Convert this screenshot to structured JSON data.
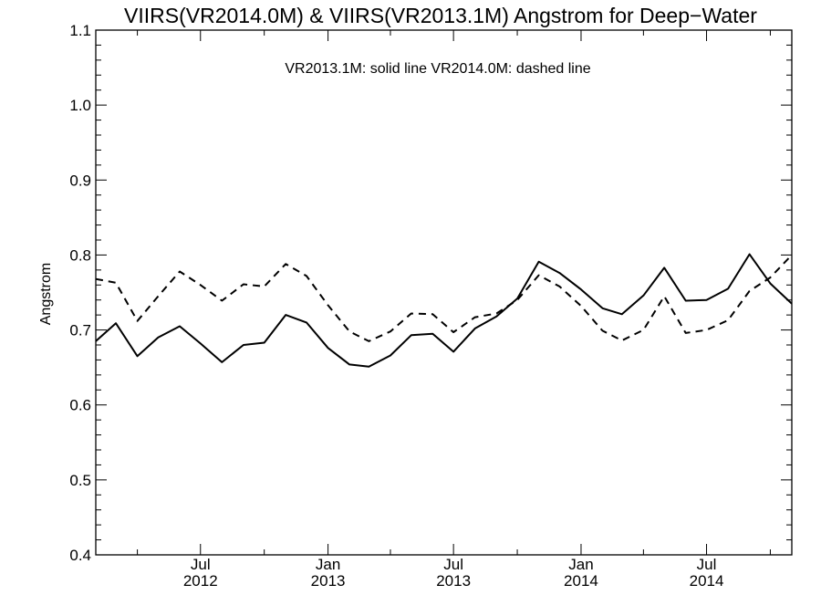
{
  "chart_data": {
    "type": "line",
    "title": "VIIRS(VR2014.0M) & VIIRS(VR2013.1M)  Angstrom for Deep−Water",
    "annotation": "VR2013.1M: solid line   VR2014.0M: dashed line",
    "ylabel": "Angstrom",
    "xlabel": "",
    "ylim": [
      0.4,
      1.1
    ],
    "xlim": [
      "2012-02-01",
      "2014-11-01"
    ],
    "y_ticks": [
      "0.4",
      "0.5",
      "0.6",
      "0.7",
      "0.8",
      "0.9",
      "1.0",
      "1.1"
    ],
    "x_ticks": [
      {
        "date": "2012-07-01",
        "label1": "Jul",
        "label2": "2012"
      },
      {
        "date": "2013-01-01",
        "label1": "Jan",
        "label2": "2013"
      },
      {
        "date": "2013-07-01",
        "label1": "Jul",
        "label2": "2013"
      },
      {
        "date": "2014-01-01",
        "label1": "Jan",
        "label2": "2014"
      },
      {
        "date": "2014-07-01",
        "label1": "Jul",
        "label2": "2014"
      }
    ],
    "x": [
      "2012-02",
      "2012-03",
      "2012-04",
      "2012-05",
      "2012-06",
      "2012-07",
      "2012-08",
      "2012-09",
      "2012-10",
      "2012-11",
      "2012-12",
      "2013-01",
      "2013-02",
      "2013-03",
      "2013-04",
      "2013-05",
      "2013-06",
      "2013-07",
      "2013-08",
      "2013-09",
      "2013-10",
      "2013-11",
      "2013-12",
      "2014-01",
      "2014-02",
      "2014-03",
      "2014-04",
      "2014-05",
      "2014-06",
      "2014-07",
      "2014-08",
      "2014-09",
      "2014-10",
      "2014-11"
    ],
    "series": [
      {
        "name": "VR2013.1M",
        "style": "solid",
        "values": [
          0.685,
          0.709,
          0.665,
          0.69,
          0.705,
          0.682,
          0.657,
          0.68,
          0.683,
          0.72,
          0.71,
          0.676,
          0.654,
          0.651,
          0.666,
          0.693,
          0.695,
          0.671,
          0.702,
          0.718,
          0.742,
          0.791,
          0.776,
          0.754,
          0.729,
          0.721,
          0.746,
          0.783,
          0.739,
          0.74,
          0.755,
          0.801,
          0.762,
          0.735
        ]
      },
      {
        "name": "VR2014.0M",
        "style": "dashed",
        "values": [
          0.768,
          0.763,
          0.712,
          0.745,
          0.778,
          0.76,
          0.739,
          0.761,
          0.758,
          0.788,
          0.772,
          0.733,
          0.698,
          0.685,
          0.698,
          0.722,
          0.721,
          0.697,
          0.717,
          0.722,
          0.74,
          0.773,
          0.758,
          0.732,
          0.699,
          0.686,
          0.7,
          0.745,
          0.696,
          0.7,
          0.713,
          0.752,
          0.77,
          0.8
        ]
      }
    ],
    "line_color": "#000000",
    "grid": false
  }
}
